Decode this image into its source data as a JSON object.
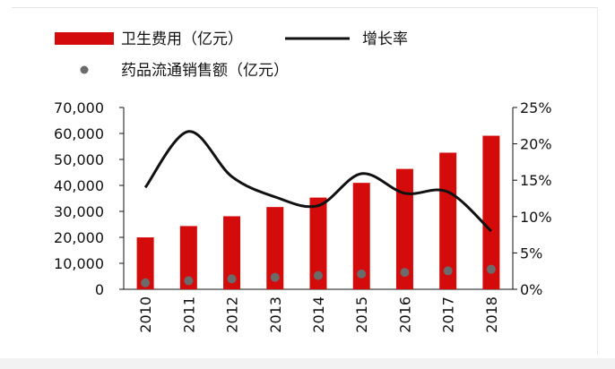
{
  "chart_data": {
    "type": "bar+line+scatter",
    "categories": [
      "2010",
      "2011",
      "2012",
      "2013",
      "2014",
      "2015",
      "2016",
      "2017",
      "2018"
    ],
    "series": [
      {
        "name": "卫生费用（亿元）",
        "kind": "bar",
        "axis": "left",
        "color": "#d40b0b",
        "values": [
          19980,
          24345,
          28119,
          31669,
          35312,
          40975,
          46345,
          52598,
          59122
        ]
      },
      {
        "name": "增长率",
        "kind": "line",
        "axis": "right",
        "color": "#111111",
        "values": [
          14.0,
          21.7,
          15.5,
          12.7,
          11.5,
          15.9,
          13.2,
          13.4,
          8.0
        ]
      },
      {
        "name": "药品流通销售额（亿元）",
        "kind": "scatter",
        "axis": "left",
        "color": "#6b6b6b",
        "values": [
          2500,
          3300,
          4000,
          4600,
          5300,
          5900,
          6500,
          7100,
          7700
        ]
      }
    ],
    "y_left": {
      "min": 0,
      "max": 70000,
      "ticks": [
        "0",
        "10,000",
        "20,000",
        "30,000",
        "40,000",
        "50,000",
        "60,000",
        "70,000"
      ]
    },
    "y_right": {
      "min": 0,
      "max": 25,
      "ticks": [
        "0%",
        "5%",
        "10%",
        "15%",
        "20%",
        "25%"
      ]
    },
    "legend_placement": "top-left"
  }
}
